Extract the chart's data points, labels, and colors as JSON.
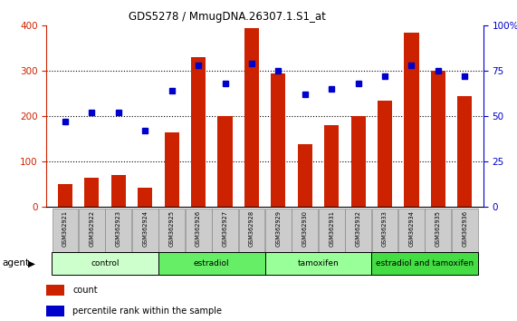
{
  "title": "GDS5278 / MmugDNA.26307.1.S1_at",
  "samples": [
    "GSM362921",
    "GSM362922",
    "GSM362923",
    "GSM362924",
    "GSM362925",
    "GSM362926",
    "GSM362927",
    "GSM362928",
    "GSM362929",
    "GSM362930",
    "GSM362931",
    "GSM362932",
    "GSM362933",
    "GSM362934",
    "GSM362935",
    "GSM362936"
  ],
  "counts": [
    50,
    65,
    70,
    42,
    165,
    330,
    200,
    395,
    295,
    138,
    180,
    200,
    235,
    385,
    300,
    245
  ],
  "percentiles": [
    47,
    52,
    52,
    42,
    64,
    78,
    68,
    79,
    75,
    62,
    65,
    68,
    72,
    78,
    75,
    72
  ],
  "groups": [
    {
      "label": "control",
      "start": 0,
      "end": 4,
      "color": "#ccffcc"
    },
    {
      "label": "estradiol",
      "start": 4,
      "end": 8,
      "color": "#66ee66"
    },
    {
      "label": "tamoxifen",
      "start": 8,
      "end": 12,
      "color": "#99ff99"
    },
    {
      "label": "estradiol and tamoxifen",
      "start": 12,
      "end": 16,
      "color": "#44dd44"
    }
  ],
  "bar_color": "#cc2200",
  "dot_color": "#0000cc",
  "left_ylim": [
    0,
    400
  ],
  "right_ylim": [
    0,
    100
  ],
  "left_yticks": [
    0,
    100,
    200,
    300,
    400
  ],
  "right_yticks": [
    0,
    25,
    50,
    75,
    100
  ],
  "right_yticklabels": [
    "0",
    "25",
    "50",
    "75",
    "100%"
  ],
  "grid_lines": [
    100,
    200,
    300
  ],
  "background_color": "#ffffff",
  "plot_bg_color": "#ffffff",
  "bar_color_left_axis": "#cc2200",
  "right_ylabel_color": "#0000cc",
  "group_label_row_color": "#000000",
  "sample_box_color": "#cccccc"
}
